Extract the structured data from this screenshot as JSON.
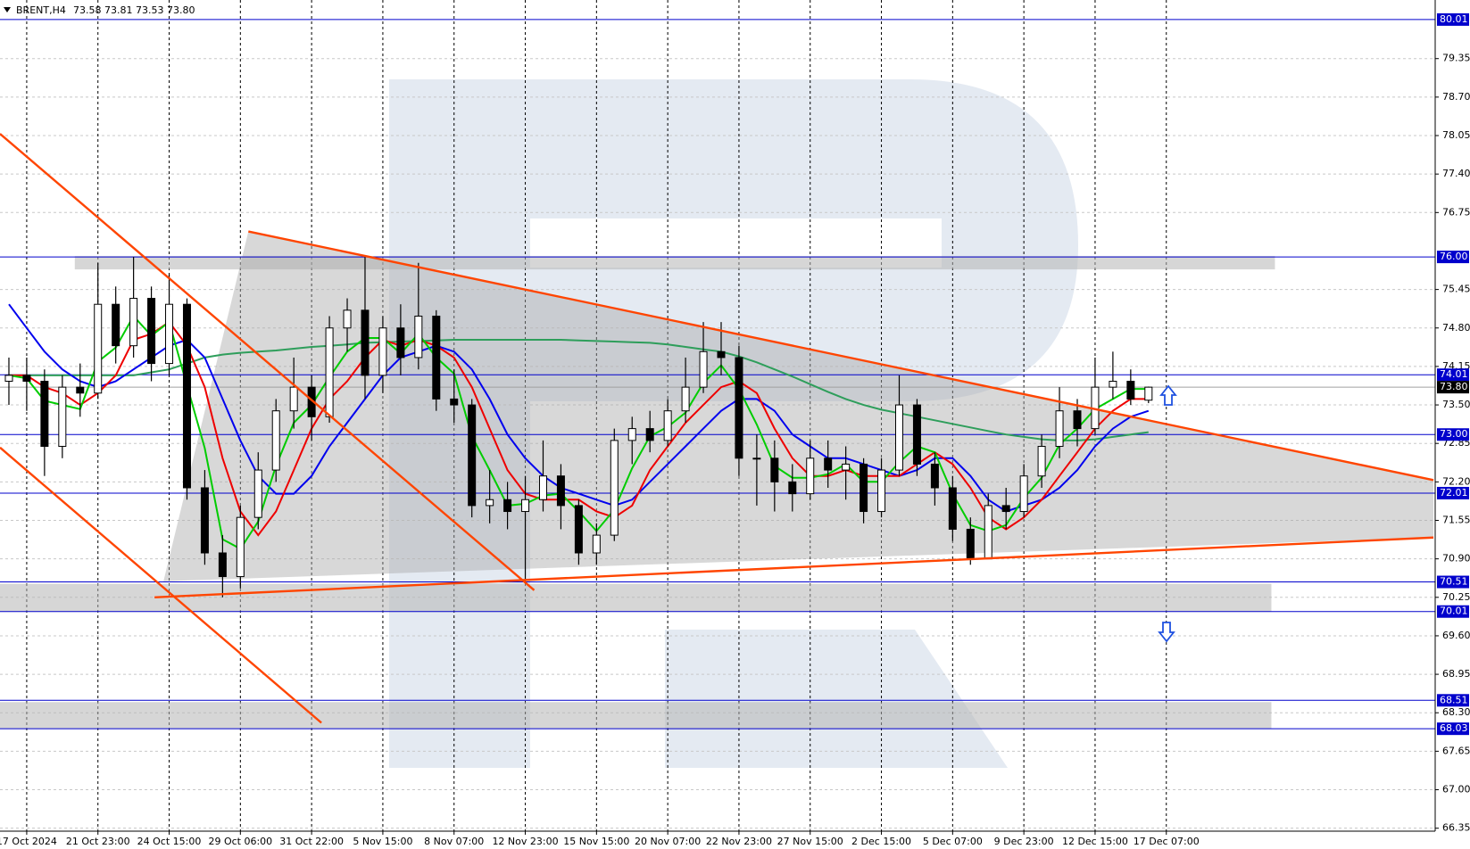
{
  "chart_data": {
    "type": "candlestick",
    "symbol": "BRENT,H4",
    "header_values": [
      "73.58",
      "73.81",
      "73.53",
      "73.80"
    ],
    "xlim": [
      -0.5,
      80.1
    ],
    "ylim": [
      80.34,
      66.3
    ],
    "grid": true,
    "up_color": "#ffffff",
    "down_color": "#000000",
    "xticks": [
      {
        "value": 1,
        "label": "17 Oct 2024"
      },
      {
        "value": 5,
        "label": "21 Oct 23:00"
      },
      {
        "value": 9,
        "label": "24 Oct 15:00"
      },
      {
        "value": 13,
        "label": "29 Oct 06:00"
      },
      {
        "value": 17,
        "label": "31 Oct 22:00"
      },
      {
        "value": 21,
        "label": "5 Nov 15:00"
      },
      {
        "value": 25,
        "label": "8 Nov 07:00"
      },
      {
        "value": 29,
        "label": "12 Nov 23:00"
      },
      {
        "value": 33,
        "label": "15 Nov 15:00"
      },
      {
        "value": 37,
        "label": "20 Nov 07:00"
      },
      {
        "value": 41,
        "label": "22 Nov 23:00"
      },
      {
        "value": 45,
        "label": "27 Nov 15:00"
      },
      {
        "value": 49,
        "label": "2 Dec 15:00"
      },
      {
        "value": 53,
        "label": "5 Dec 07:00"
      },
      {
        "value": 57,
        "label": "9 Dec 23:00"
      },
      {
        "value": 61,
        "label": "12 Dec 15:00"
      },
      {
        "value": 65,
        "label": "17 Dec 07:00"
      }
    ],
    "yticks": [
      {
        "value": 79.35,
        "label": "79.35"
      },
      {
        "value": 78.7,
        "label": "78.70"
      },
      {
        "value": 78.05,
        "label": "78.05"
      },
      {
        "value": 77.4,
        "label": "77.40"
      },
      {
        "value": 76.75,
        "label": "76.75"
      },
      {
        "value": 75.45,
        "label": "75.45"
      },
      {
        "value": 74.8,
        "label": "74.80"
      },
      {
        "value": 74.15,
        "label": "74.15"
      },
      {
        "value": 73.5,
        "label": "73.50"
      },
      {
        "value": 72.85,
        "label": "72.85"
      },
      {
        "value": 72.2,
        "label": "72.20"
      },
      {
        "value": 71.55,
        "label": "71.55"
      },
      {
        "value": 70.9,
        "label": "70.90"
      },
      {
        "value": 70.25,
        "label": "70.25"
      },
      {
        "value": 69.6,
        "label": "69.60"
      },
      {
        "value": 68.95,
        "label": "68.95"
      },
      {
        "value": 68.3,
        "label": "68.30"
      },
      {
        "value": 67.65,
        "label": "67.65"
      },
      {
        "value": 67,
        "label": "67.00"
      },
      {
        "value": 66.35,
        "label": "66.35"
      }
    ],
    "levels": [
      {
        "value": 80.01,
        "label": "80.01"
      },
      {
        "value": 76,
        "label": "76.00"
      },
      {
        "value": 74.01,
        "label": "74.01"
      },
      {
        "value": 73,
        "label": "73.00"
      },
      {
        "value": 72.01,
        "label": "72.01"
      },
      {
        "value": 70.51,
        "label": "70.51"
      },
      {
        "value": 70.01,
        "label": "70.01"
      },
      {
        "value": 68.51,
        "label": "68.51"
      },
      {
        "value": 68.03,
        "label": "68.03"
      }
    ],
    "level_color": "#0000cc",
    "last_price": {
      "value": 73.8,
      "label": "73.80"
    },
    "ohlc": [
      [
        73.9,
        74.3,
        73.5,
        74.0
      ],
      [
        74.0,
        74.3,
        73.4,
        73.9
      ],
      [
        73.9,
        74.1,
        72.3,
        72.8
      ],
      [
        72.8,
        74.0,
        72.6,
        73.8
      ],
      [
        73.8,
        74.2,
        73.3,
        73.7
      ],
      [
        73.7,
        75.9,
        73.6,
        75.2
      ],
      [
        75.2,
        75.5,
        74.2,
        74.5
      ],
      [
        74.5,
        76.0,
        74.3,
        75.3
      ],
      [
        75.3,
        75.5,
        73.9,
        74.2
      ],
      [
        74.2,
        75.7,
        74.0,
        75.2
      ],
      [
        75.2,
        75.3,
        71.9,
        72.1
      ],
      [
        72.1,
        72.4,
        70.8,
        71.0
      ],
      [
        71.0,
        71.3,
        70.25,
        70.6
      ],
      [
        70.6,
        71.8,
        70.4,
        71.6
      ],
      [
        71.6,
        72.7,
        71.4,
        72.4
      ],
      [
        72.4,
        73.6,
        72.2,
        73.4
      ],
      [
        73.4,
        74.3,
        73.1,
        73.8
      ],
      [
        73.8,
        74.0,
        72.9,
        73.3
      ],
      [
        73.3,
        75.0,
        73.2,
        74.8
      ],
      [
        74.8,
        75.3,
        74.4,
        75.1
      ],
      [
        75.1,
        76.0,
        73.6,
        74.0
      ],
      [
        74.0,
        75.0,
        73.7,
        74.8
      ],
      [
        74.8,
        75.2,
        74.0,
        74.3
      ],
      [
        74.3,
        75.9,
        74.1,
        75.0
      ],
      [
        75.0,
        75.1,
        73.4,
        73.6
      ],
      [
        73.6,
        74.1,
        73.2,
        73.5
      ],
      [
        73.5,
        73.6,
        71.6,
        71.8
      ],
      [
        71.8,
        72.4,
        71.5,
        71.9
      ],
      [
        71.9,
        72.2,
        71.4,
        71.7
      ],
      [
        71.7,
        72.3,
        70.5,
        71.9
      ],
      [
        71.9,
        72.9,
        71.7,
        72.3
      ],
      [
        72.3,
        72.5,
        71.4,
        71.8
      ],
      [
        71.8,
        71.9,
        70.8,
        71.0
      ],
      [
        71.0,
        71.5,
        70.8,
        71.3
      ],
      [
        71.3,
        73.1,
        71.2,
        72.9
      ],
      [
        72.9,
        73.3,
        72.5,
        73.1
      ],
      [
        73.1,
        73.4,
        72.7,
        72.9
      ],
      [
        72.9,
        73.6,
        72.8,
        73.4
      ],
      [
        73.4,
        74.3,
        73.2,
        73.8
      ],
      [
        73.8,
        74.9,
        73.7,
        74.4
      ],
      [
        74.4,
        74.9,
        74.0,
        74.3
      ],
      [
        74.3,
        74.5,
        72.3,
        72.6
      ],
      [
        72.6,
        73.0,
        71.8,
        72.6
      ],
      [
        72.6,
        72.9,
        71.7,
        72.2
      ],
      [
        72.2,
        72.5,
        71.7,
        72.0
      ],
      [
        72.0,
        72.9,
        71.9,
        72.6
      ],
      [
        72.6,
        72.9,
        72.1,
        72.4
      ],
      [
        72.4,
        72.8,
        71.9,
        72.5
      ],
      [
        72.5,
        72.6,
        71.5,
        71.7
      ],
      [
        71.7,
        72.6,
        71.6,
        72.4
      ],
      [
        72.4,
        74.0,
        72.3,
        73.5
      ],
      [
        73.5,
        73.6,
        72.3,
        72.5
      ],
      [
        72.5,
        72.7,
        71.8,
        72.1
      ],
      [
        72.1,
        72.3,
        71.2,
        71.4
      ],
      [
        71.4,
        71.6,
        70.8,
        70.9
      ],
      [
        70.9,
        72.0,
        70.9,
        71.8
      ],
      [
        71.8,
        72.1,
        71.4,
        71.7
      ],
      [
        71.7,
        72.5,
        71.6,
        72.3
      ],
      [
        72.3,
        73.0,
        72.1,
        72.8
      ],
      [
        72.8,
        73.8,
        72.6,
        73.4
      ],
      [
        73.4,
        73.6,
        72.8,
        73.1
      ],
      [
        73.1,
        74.3,
        73.0,
        73.8
      ],
      [
        73.8,
        74.4,
        73.6,
        73.9
      ],
      [
        73.9,
        74.1,
        73.5,
        73.6
      ],
      [
        73.58,
        73.81,
        73.53,
        73.8
      ]
    ],
    "indicators": [
      {
        "color": "#2e9e5b",
        "values": [
          74.0,
          74.0,
          74.0,
          74.0,
          74.0,
          74.0,
          74.0,
          74.0,
          74.05,
          74.1,
          74.2,
          74.3,
          74.35,
          74.38,
          74.4,
          74.42,
          74.45,
          74.48,
          74.5,
          74.52,
          74.55,
          74.56,
          74.57,
          74.58,
          74.59,
          74.6,
          74.6,
          74.6,
          74.6,
          74.6,
          74.6,
          74.6,
          74.59,
          74.58,
          74.57,
          74.56,
          74.55,
          74.52,
          74.48,
          74.44,
          74.4,
          74.32,
          74.22,
          74.1,
          73.98,
          73.85,
          73.72,
          73.6,
          73.5,
          73.42,
          73.36,
          73.3,
          73.24,
          73.18,
          73.12,
          73.06,
          73.0,
          72.96,
          72.92,
          72.9,
          72.9,
          72.92,
          72.96,
          73.0,
          73.04
        ]
      },
      {
        "color": "#0000ee",
        "values": [
          75.2,
          74.8,
          74.4,
          74.1,
          73.9,
          73.8,
          73.9,
          74.1,
          74.3,
          74.5,
          74.6,
          74.3,
          73.6,
          72.9,
          72.3,
          72.0,
          72.0,
          72.3,
          72.8,
          73.2,
          73.6,
          74.0,
          74.3,
          74.4,
          74.5,
          74.4,
          74.1,
          73.6,
          73.0,
          72.6,
          72.3,
          72.1,
          72.0,
          71.9,
          71.8,
          71.9,
          72.2,
          72.5,
          72.8,
          73.1,
          73.4,
          73.6,
          73.6,
          73.4,
          73.0,
          72.8,
          72.6,
          72.6,
          72.5,
          72.4,
          72.3,
          72.4,
          72.6,
          72.6,
          72.3,
          71.9,
          71.7,
          71.8,
          71.9,
          72.1,
          72.4,
          72.8,
          73.1,
          73.3,
          73.4
        ]
      },
      {
        "color": "#ee0000",
        "values": [
          74.0,
          74.0,
          73.8,
          73.7,
          73.5,
          73.7,
          74.0,
          74.6,
          74.7,
          74.9,
          74.5,
          73.8,
          72.6,
          71.7,
          71.3,
          71.7,
          72.4,
          73.1,
          73.6,
          73.9,
          74.3,
          74.6,
          74.5,
          74.6,
          74.5,
          74.3,
          73.8,
          73.1,
          72.4,
          72.0,
          71.9,
          71.9,
          71.9,
          71.7,
          71.6,
          71.8,
          72.4,
          72.8,
          73.2,
          73.5,
          73.8,
          73.9,
          73.7,
          73.1,
          72.6,
          72.3,
          72.3,
          72.4,
          72.3,
          72.3,
          72.3,
          72.5,
          72.7,
          72.5,
          72.1,
          71.6,
          71.4,
          71.6,
          71.9,
          72.3,
          72.7,
          73.1,
          73.4,
          73.6,
          73.6
        ]
      },
      {
        "color": "#00cc00",
        "values": [
          74.0,
          73.95,
          73.57,
          73.5,
          73.43,
          74.23,
          74.47,
          75.0,
          74.67,
          74.9,
          73.83,
          72.77,
          71.23,
          71.07,
          71.53,
          72.47,
          73.2,
          73.5,
          73.97,
          74.4,
          74.63,
          74.63,
          74.37,
          74.7,
          74.3,
          74.03,
          72.97,
          72.4,
          71.8,
          71.83,
          71.97,
          72.0,
          71.7,
          71.37,
          71.73,
          72.43,
          72.97,
          73.13,
          73.37,
          73.87,
          74.17,
          73.77,
          73.17,
          72.47,
          72.27,
          72.27,
          72.33,
          72.5,
          72.2,
          72.2,
          72.53,
          72.8,
          72.7,
          72.0,
          71.47,
          71.37,
          71.47,
          71.93,
          72.27,
          72.83,
          73.1,
          73.43,
          73.6,
          73.77,
          73.77
        ]
      }
    ],
    "trendlines": [
      {
        "color": "#ff4500",
        "x": [
          -0.5,
          29.5
        ],
        "y": [
          78.08,
          70.37
        ]
      },
      {
        "color": "#ff4500",
        "x": [
          -0.5,
          17.55
        ],
        "y": [
          72.78,
          68.13
        ]
      },
      {
        "color": "#ff4500",
        "x": [
          13.45,
          80.0
        ],
        "y": [
          76.43,
          72.23
        ]
      },
      {
        "color": "#ff4500",
        "x": [
          8.18,
          80.0
        ],
        "y": [
          70.25,
          71.26
        ]
      }
    ]
  }
}
